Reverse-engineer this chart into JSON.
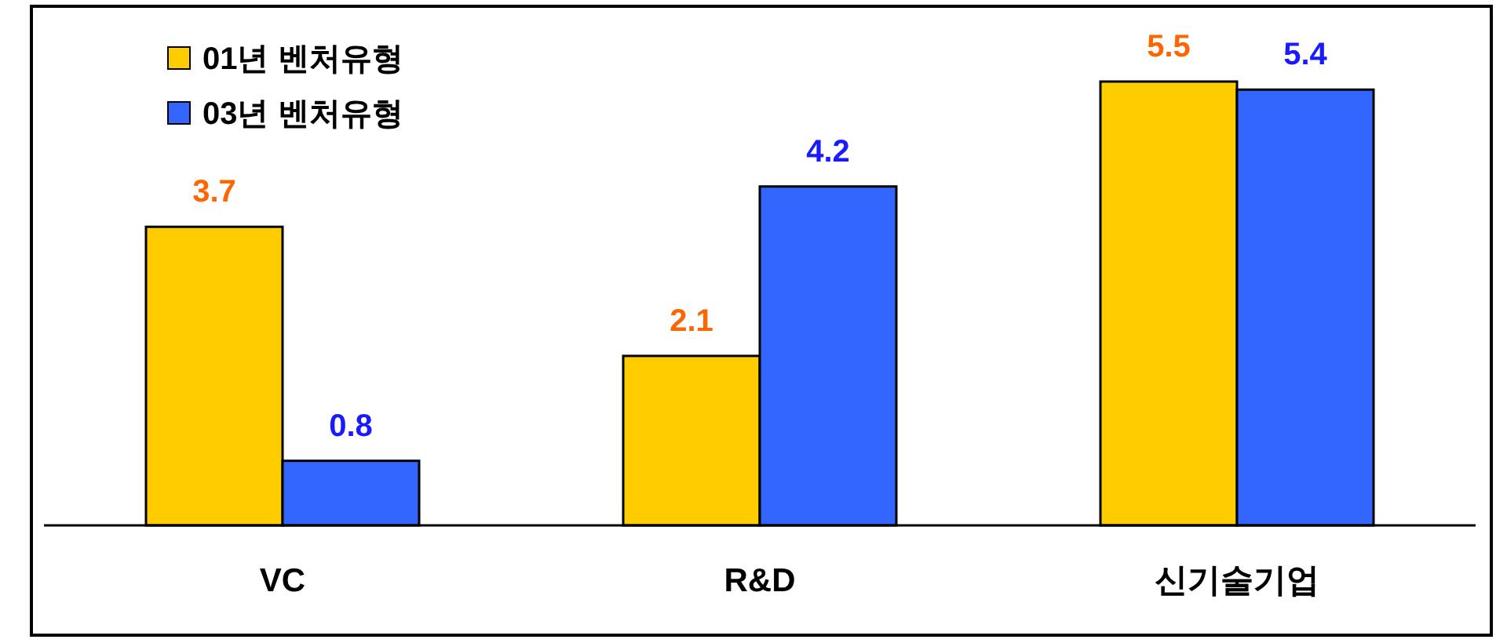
{
  "chart_data": {
    "type": "bar",
    "categories": [
      "VC",
      "R&D",
      "신기술기업"
    ],
    "series": [
      {
        "name": "01년 벤처유형",
        "color": "#ffcc00",
        "values": [
          3.7,
          2.1,
          5.5
        ]
      },
      {
        "name": "03년 벤처유형",
        "color": "#3366ff",
        "values": [
          0.8,
          4.2,
          5.4
        ]
      }
    ],
    "data_labels": true,
    "legend": "top left"
  }
}
